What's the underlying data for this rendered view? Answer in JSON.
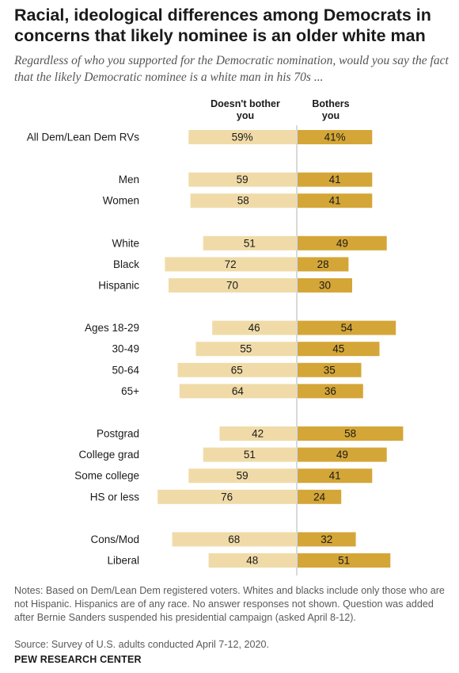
{
  "header": {
    "title": "Racial, ideological differences among Democrats in concerns that likely nominee is an older white man",
    "subtitle": "Regardless of who you supported for the Democratic nomination, would you say the fact that the likely Democratic nominee is a white man in his 70s ..."
  },
  "colors": {
    "doesnt_bother": "#f0dba8",
    "bothers": "#d4a637",
    "divider": "#b3b3b3"
  },
  "chart_data": {
    "type": "bar",
    "series": [
      {
        "name": "Doesn't bother you",
        "legend_lines": [
          "Doesn't bother",
          "you"
        ]
      },
      {
        "name": "Bothers you",
        "legend_lines": [
          "Bothers",
          "you"
        ]
      }
    ],
    "rows": [
      {
        "label": "All Dem/Lean Dem RVs",
        "values": [
          59,
          41
        ],
        "value_labels": [
          "59%",
          "41%"
        ],
        "group": 0
      },
      {
        "label": "Men",
        "values": [
          59,
          41
        ],
        "value_labels": [
          "59",
          "41"
        ],
        "group": 1
      },
      {
        "label": "Women",
        "values": [
          58,
          41
        ],
        "value_labels": [
          "58",
          "41"
        ],
        "group": 1
      },
      {
        "label": "White",
        "values": [
          51,
          49
        ],
        "value_labels": [
          "51",
          "49"
        ],
        "group": 2
      },
      {
        "label": "Black",
        "values": [
          72,
          28
        ],
        "value_labels": [
          "72",
          "28"
        ],
        "group": 2
      },
      {
        "label": "Hispanic",
        "values": [
          70,
          30
        ],
        "value_labels": [
          "70",
          "30"
        ],
        "group": 2
      },
      {
        "label": "Ages 18-29",
        "values": [
          46,
          54
        ],
        "value_labels": [
          "46",
          "54"
        ],
        "group": 3
      },
      {
        "label": "30-49",
        "values": [
          55,
          45
        ],
        "value_labels": [
          "55",
          "45"
        ],
        "group": 3
      },
      {
        "label": "50-64",
        "values": [
          65,
          35
        ],
        "value_labels": [
          "65",
          "35"
        ],
        "group": 3
      },
      {
        "label": "65+",
        "values": [
          64,
          36
        ],
        "value_labels": [
          "64",
          "36"
        ],
        "group": 3
      },
      {
        "label": "Postgrad",
        "values": [
          42,
          58
        ],
        "value_labels": [
          "42",
          "58"
        ],
        "group": 4
      },
      {
        "label": "College grad",
        "values": [
          51,
          49
        ],
        "value_labels": [
          "51",
          "49"
        ],
        "group": 4
      },
      {
        "label": "Some college",
        "values": [
          59,
          41
        ],
        "value_labels": [
          "59",
          "41"
        ],
        "group": 4
      },
      {
        "label": "HS or less",
        "values": [
          76,
          24
        ],
        "value_labels": [
          "76",
          "24"
        ],
        "group": 4
      },
      {
        "label": "Cons/Mod",
        "values": [
          68,
          32
        ],
        "value_labels": [
          "68",
          "32"
        ],
        "group": 5
      },
      {
        "label": "Liberal",
        "values": [
          48,
          51
        ],
        "value_labels": [
          "48",
          "51"
        ],
        "group": 5
      }
    ]
  },
  "footer": {
    "notes": "Notes: Based on Dem/Lean Dem registered voters. Whites and blacks include only those who are not Hispanic. Hispanics are of any race. No answer responses not shown. Question was added after Bernie Sanders suspended his presidential campaign (asked April 8-12).",
    "source": "Source: Survey of U.S. adults conducted April 7-12, 2020.",
    "brand": "PEW RESEARCH CENTER"
  }
}
